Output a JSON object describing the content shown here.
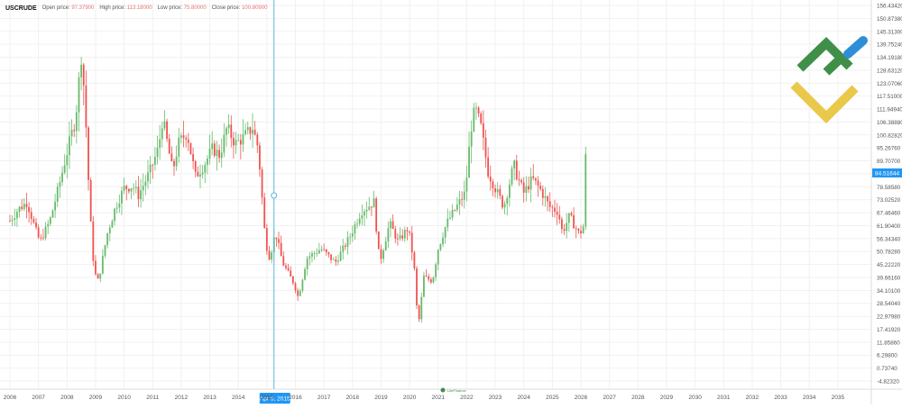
{
  "header": {
    "symbol": "USCRUDE",
    "open_label": "Open price:",
    "open_value": "97.37900",
    "high_label": "High price:",
    "high_value": "113.18000",
    "low_label": "Low price:",
    "low_value": "75.80000",
    "close_label": "Close price:",
    "close_value": "100.80900"
  },
  "crosshair": {
    "date_label": "Apr 5, 2015"
  },
  "logo": {
    "watermark_text": "LiteFinance"
  },
  "colors": {
    "up": "#26a69a",
    "up_light": "#66bb6a",
    "down": "#ef5350",
    "grid": "#f1f1f1",
    "crosshair": "#5bb6d6",
    "price_badge": "#2196f3",
    "axis_text": "#555555",
    "logo_green": "#3f8f48",
    "logo_yellow": "#e9c84a",
    "logo_blue": "#2e8fd8"
  },
  "chart_data": {
    "type": "candlestick",
    "x_tick_labels": [
      "2006",
      "2007",
      "2008",
      "2009",
      "2010",
      "2011",
      "2012",
      "2013",
      "2014",
      "2015",
      "2016",
      "2017",
      "2018",
      "2019",
      "2020",
      "2021",
      "2022",
      "2023",
      "2024",
      "2025",
      "2026",
      "2027",
      "2028",
      "2029",
      "2030",
      "2031",
      "2032",
      "2033",
      "2034",
      "2035"
    ],
    "y_tick_labels": [
      "156.43420",
      "150.87380",
      "145.31300",
      "139.75240",
      "134.19180",
      "128.63120",
      "123.07060",
      "117.51000",
      "111.94940",
      "106.38880",
      "100.82820",
      "95.26760",
      "89.70700",
      "84.14640",
      "78.58580",
      "73.02520",
      "67.46460",
      "61.90400",
      "56.34340",
      "50.78280",
      "45.22220",
      "39.66160",
      "34.10100",
      "28.54040",
      "22.97980",
      "17.41920",
      "11.85860",
      "6.29800",
      "0.73740",
      "-4.82320"
    ],
    "ylim": [
      -4.8232,
      156.4342
    ],
    "current_price": "84.51644",
    "frequency": "monthly",
    "anchors": [
      [
        2006.0,
        64
      ],
      [
        2006.3,
        69
      ],
      [
        2006.6,
        72
      ],
      [
        2006.9,
        60
      ],
      [
        2007.05,
        55
      ],
      [
        2007.4,
        64
      ],
      [
        2007.7,
        78
      ],
      [
        2007.95,
        91
      ],
      [
        2008.3,
        108
      ],
      [
        2008.5,
        135
      ],
      [
        2008.62,
        117
      ],
      [
        2008.8,
        68
      ],
      [
        2008.95,
        42
      ],
      [
        2009.1,
        38
      ],
      [
        2009.4,
        58
      ],
      [
        2009.7,
        70
      ],
      [
        2010.0,
        78
      ],
      [
        2010.3,
        79
      ],
      [
        2010.5,
        75
      ],
      [
        2010.9,
        85
      ],
      [
        2011.2,
        95
      ],
      [
        2011.35,
        108
      ],
      [
        2011.7,
        85
      ],
      [
        2011.9,
        97
      ],
      [
        2012.2,
        102
      ],
      [
        2012.5,
        83
      ],
      [
        2012.8,
        88
      ],
      [
        2013.1,
        95
      ],
      [
        2013.35,
        92
      ],
      [
        2013.6,
        104
      ],
      [
        2013.9,
        97
      ],
      [
        2014.2,
        100
      ],
      [
        2014.5,
        104
      ],
      [
        2014.7,
        95
      ],
      [
        2014.95,
        55
      ],
      [
        2015.1,
        48
      ],
      [
        2015.3,
        59
      ],
      [
        2015.55,
        46
      ],
      [
        2015.95,
        37
      ],
      [
        2016.1,
        31
      ],
      [
        2016.4,
        48
      ],
      [
        2016.9,
        52
      ],
      [
        2017.4,
        46
      ],
      [
        2017.9,
        57
      ],
      [
        2018.3,
        68
      ],
      [
        2018.75,
        72
      ],
      [
        2018.95,
        46
      ],
      [
        2019.3,
        63
      ],
      [
        2019.6,
        55
      ],
      [
        2019.95,
        61
      ],
      [
        2020.15,
        46
      ],
      [
        2020.3,
        18
      ],
      [
        2020.5,
        40
      ],
      [
        2020.8,
        38
      ],
      [
        2021.0,
        52
      ],
      [
        2021.3,
        63
      ],
      [
        2021.6,
        69
      ],
      [
        2021.95,
        76
      ],
      [
        2022.15,
        104
      ],
      [
        2022.3,
        112
      ],
      [
        2022.5,
        104
      ],
      [
        2022.75,
        85
      ],
      [
        2023.0,
        78
      ],
      [
        2023.3,
        70
      ],
      [
        2023.65,
        88
      ],
      [
        2023.8,
        82
      ],
      [
        2024.0,
        76
      ],
      [
        2024.3,
        82
      ],
      [
        2024.6,
        77
      ],
      [
        2024.9,
        70
      ],
      [
        2025.2,
        68
      ],
      [
        2025.35,
        59
      ],
      [
        2025.6,
        66
      ],
      [
        2025.95,
        58
      ],
      [
        2026.1,
        62
      ],
      [
        2026.16,
        90
      ],
      [
        2026.22,
        101
      ]
    ]
  }
}
